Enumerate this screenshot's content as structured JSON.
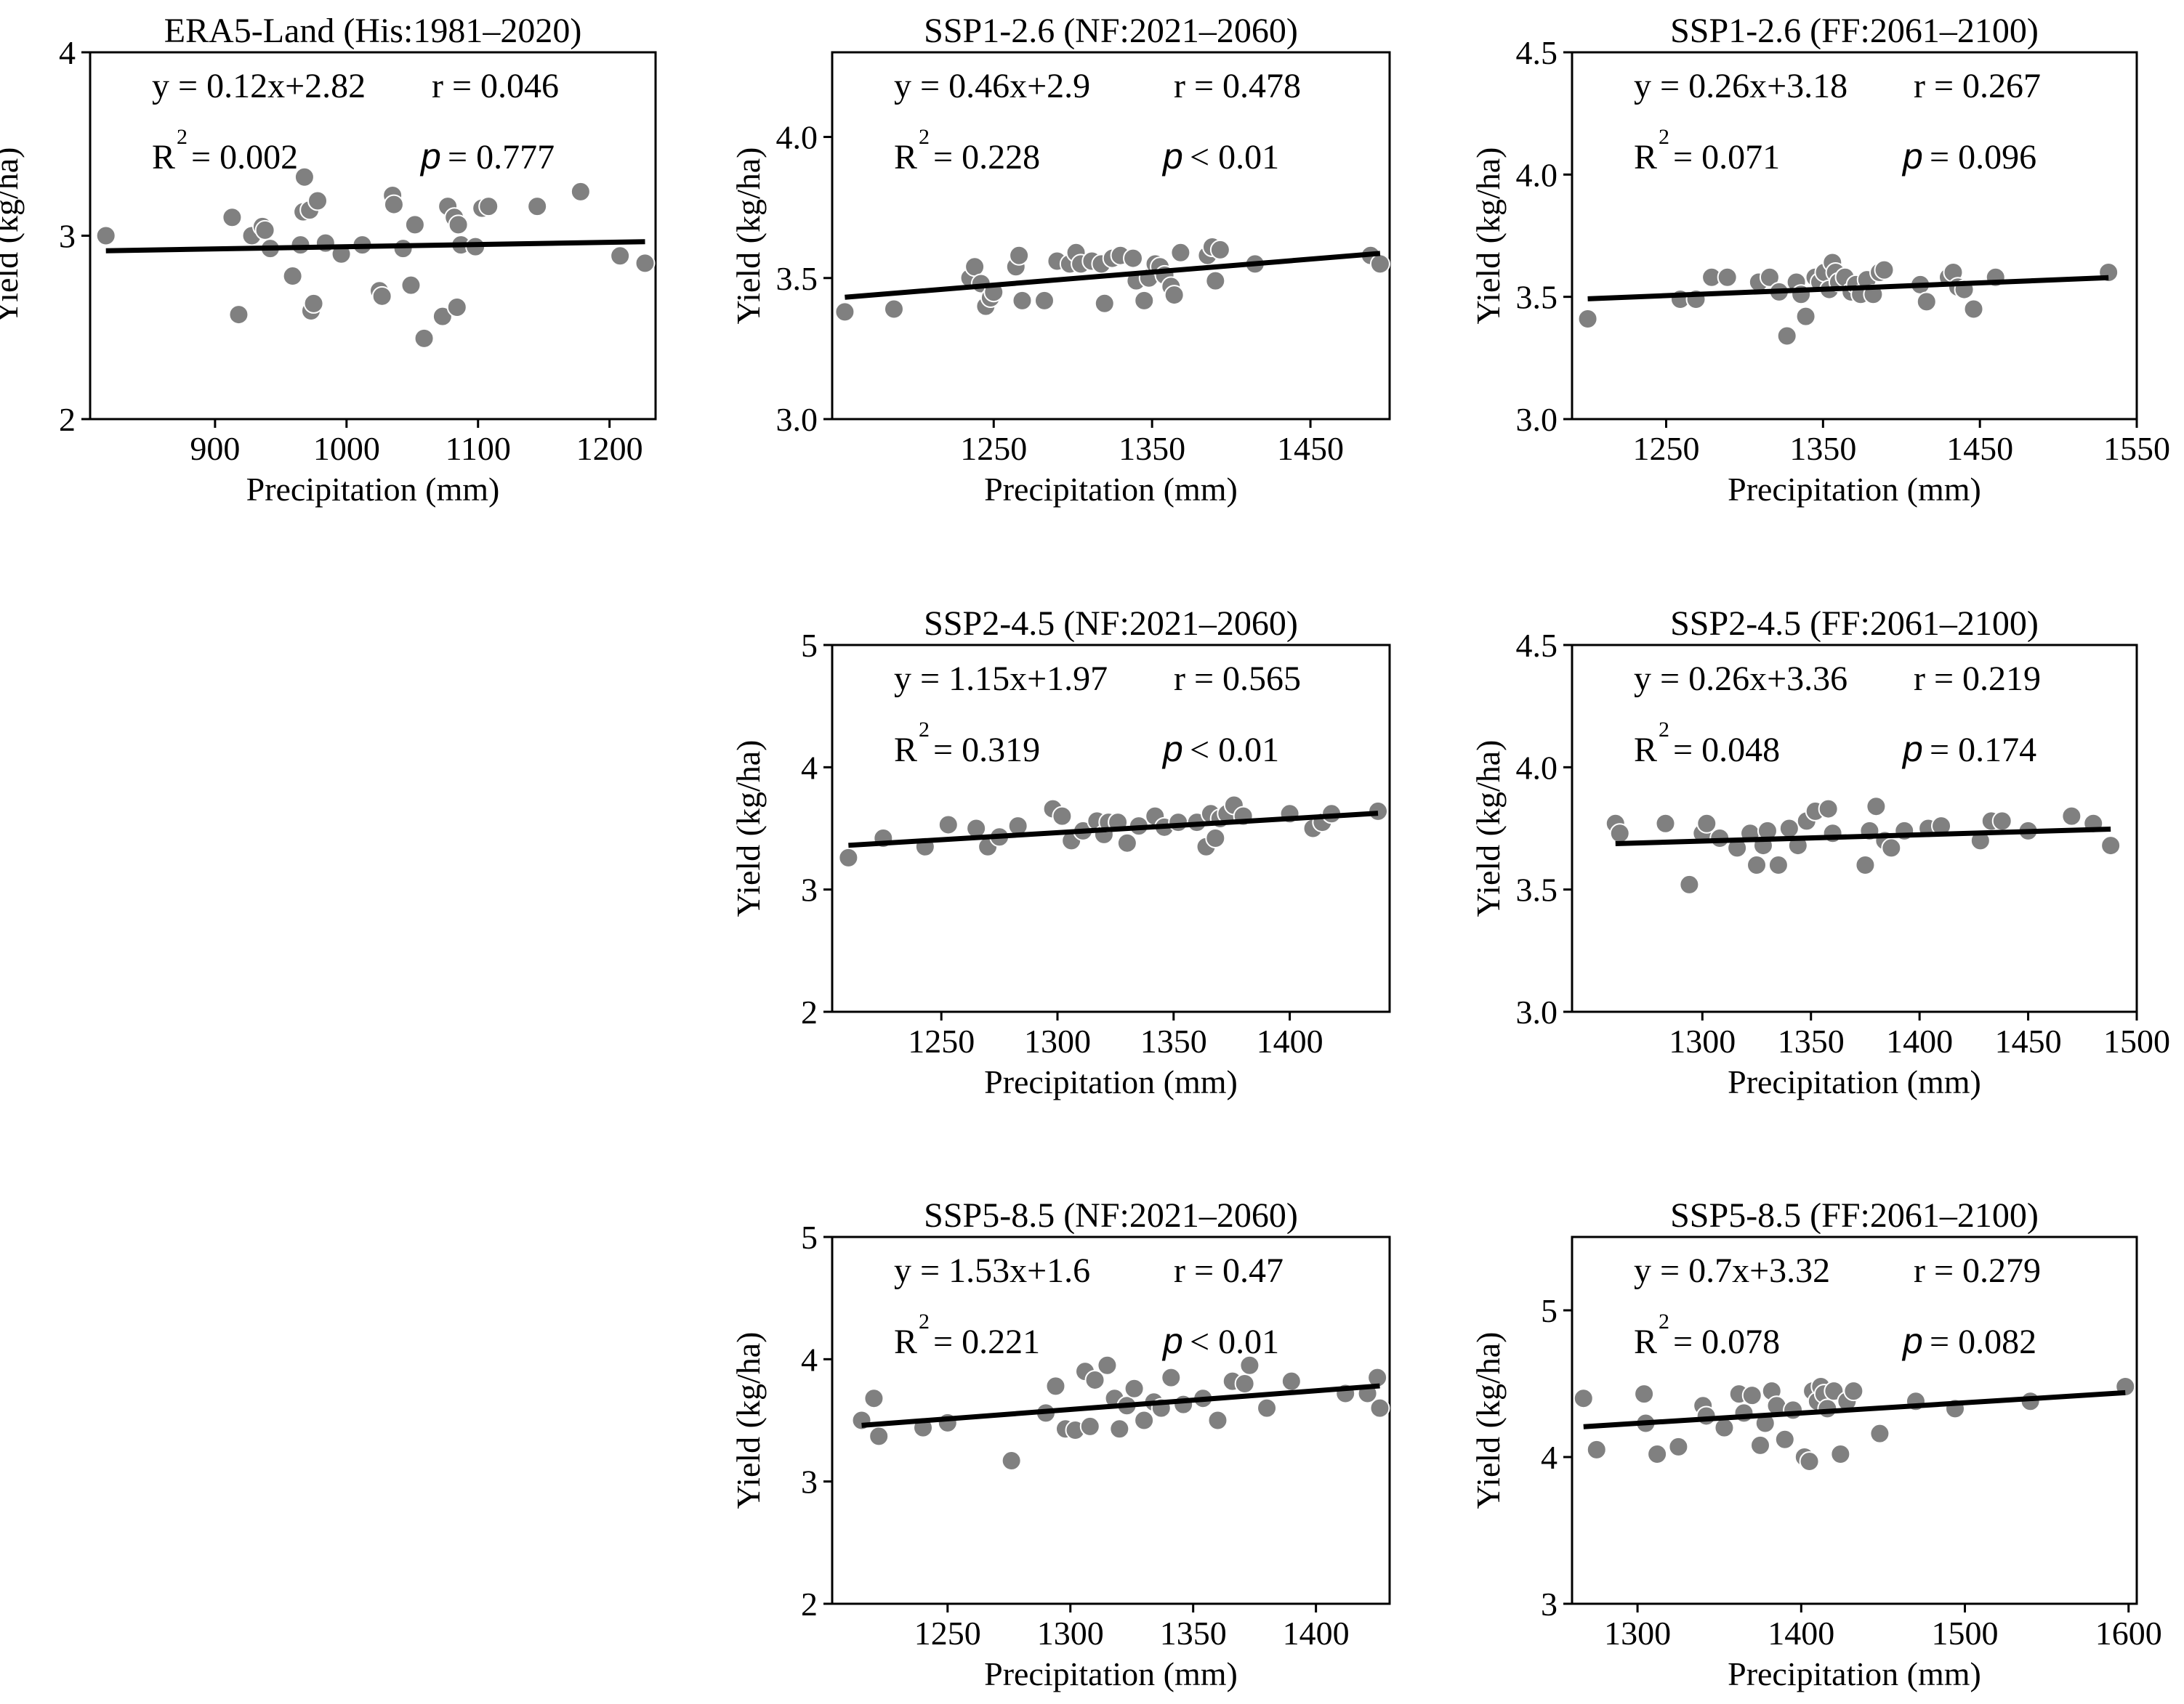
{
  "figure": {
    "colors": {
      "point": "#808080",
      "point_edge": "#ffffff",
      "line": "#000000",
      "axes": "#000000"
    }
  },
  "chart_data": [
    {
      "id": "era5",
      "type": "scatter",
      "title": "ERA5-Land (His:1981–2020)",
      "xlabel": "Precipitation (mm)",
      "ylabel": "Yield (kg/ha)",
      "xlim": [
        805,
        1235
      ],
      "ylim": [
        2,
        4
      ],
      "xticks": [
        900,
        1000,
        1100,
        1200
      ],
      "yticks": [
        2,
        3,
        4
      ],
      "equation": "y = 0.12x+2.82",
      "r_text": "r = 0.046",
      "r2_label": "R",
      "r2_sup": "2",
      "r2_value": "= 0.002",
      "p_label": "p",
      "p_value": "= 0.777",
      "fit": {
        "slope_per_1000mm": 0.12,
        "intercept": 2.82
      },
      "points": [
        [
          817,
          3.0
        ],
        [
          913,
          3.1
        ],
        [
          918,
          2.57
        ],
        [
          928,
          3.0
        ],
        [
          936,
          3.05
        ],
        [
          938,
          3.03
        ],
        [
          942,
          2.93
        ],
        [
          959,
          2.78
        ],
        [
          965,
          2.95
        ],
        [
          967,
          3.13
        ],
        [
          968,
          3.32
        ],
        [
          972,
          3.14
        ],
        [
          973,
          2.59
        ],
        [
          975,
          2.63
        ],
        [
          978,
          3.19
        ],
        [
          984,
          2.96
        ],
        [
          996,
          2.9
        ],
        [
          1012,
          2.95
        ],
        [
          1025,
          2.7
        ],
        [
          1027,
          2.67
        ],
        [
          1035,
          3.22
        ],
        [
          1036,
          3.17
        ],
        [
          1043,
          2.93
        ],
        [
          1049,
          2.73
        ],
        [
          1052,
          3.06
        ],
        [
          1059,
          2.44
        ],
        [
          1073,
          2.56
        ],
        [
          1077,
          3.16
        ],
        [
          1082,
          3.1
        ],
        [
          1084,
          2.61
        ],
        [
          1085,
          3.06
        ],
        [
          1087,
          2.95
        ],
        [
          1098,
          2.94
        ],
        [
          1103,
          3.15
        ],
        [
          1108,
          3.16
        ],
        [
          1145,
          3.16
        ],
        [
          1178,
          3.24
        ],
        [
          1208,
          2.89
        ],
        [
          1227,
          2.85
        ]
      ]
    },
    {
      "id": "ssp126_nf",
      "type": "scatter",
      "title": "SSP1-2.6 (NF:2021–2060)",
      "xlabel": "Precipitation (mm)",
      "ylabel": "Yield (kg/ha)",
      "xlim": [
        1148,
        1500
      ],
      "ylim": [
        3.0,
        4.3
      ],
      "xticks": [
        1250,
        1350,
        1450
      ],
      "yticks": [
        3.0,
        3.5,
        4.0
      ],
      "tick_decimals": 1,
      "equation": "y = 0.46x+2.9",
      "r_text": "r = 0.478",
      "r2_label": "R",
      "r2_sup": "2",
      "r2_value": "= 0.228",
      "p_label": "p",
      "p_value": "< 0.01",
      "fit": {
        "slope_per_1000mm": 0.46,
        "intercept": 2.9
      },
      "points": [
        [
          1156,
          3.38
        ],
        [
          1187,
          3.39
        ],
        [
          1235,
          3.5
        ],
        [
          1238,
          3.54
        ],
        [
          1242,
          3.48
        ],
        [
          1245,
          3.4
        ],
        [
          1248,
          3.43
        ],
        [
          1250,
          3.45
        ],
        [
          1264,
          3.54
        ],
        [
          1266,
          3.58
        ],
        [
          1268,
          3.42
        ],
        [
          1282,
          3.42
        ],
        [
          1290,
          3.56
        ],
        [
          1298,
          3.55
        ],
        [
          1302,
          3.59
        ],
        [
          1305,
          3.55
        ],
        [
          1312,
          3.56
        ],
        [
          1318,
          3.55
        ],
        [
          1320,
          3.41
        ],
        [
          1325,
          3.57
        ],
        [
          1330,
          3.58
        ],
        [
          1338,
          3.57
        ],
        [
          1340,
          3.49
        ],
        [
          1345,
          3.42
        ],
        [
          1348,
          3.5
        ],
        [
          1352,
          3.55
        ],
        [
          1355,
          3.54
        ],
        [
          1358,
          3.51
        ],
        [
          1362,
          3.47
        ],
        [
          1364,
          3.44
        ],
        [
          1368,
          3.59
        ],
        [
          1385,
          3.58
        ],
        [
          1388,
          3.61
        ],
        [
          1390,
          3.49
        ],
        [
          1393,
          3.6
        ],
        [
          1415,
          3.55
        ],
        [
          1488,
          3.58
        ],
        [
          1494,
          3.55
        ]
      ]
    },
    {
      "id": "ssp126_ff",
      "type": "scatter",
      "title": "SSP1-2.6 (FF:2061–2100)",
      "xlabel": "Precipitation (mm)",
      "ylabel": "Yield (kg/ha)",
      "xlim": [
        1190,
        1550
      ],
      "ylim": [
        3.0,
        4.5
      ],
      "xticks": [
        1250,
        1350,
        1450,
        1550
      ],
      "yticks": [
        3.0,
        3.5,
        4.0,
        4.5
      ],
      "tick_decimals": 1,
      "equation": "y = 0.26x+3.18",
      "r_text": "r = 0.267",
      "r2_label": "R",
      "r2_sup": "2",
      "r2_value": "= 0.071",
      "p_label": "p",
      "p_value": "= 0.096",
      "fit": {
        "slope_per_1000mm": 0.26,
        "intercept": 3.18
      },
      "points": [
        [
          1200,
          3.41
        ],
        [
          1259,
          3.49
        ],
        [
          1269,
          3.49
        ],
        [
          1279,
          3.58
        ],
        [
          1289,
          3.58
        ],
        [
          1309,
          3.56
        ],
        [
          1316,
          3.58
        ],
        [
          1322,
          3.52
        ],
        [
          1327,
          3.34
        ],
        [
          1333,
          3.56
        ],
        [
          1336,
          3.51
        ],
        [
          1339,
          3.42
        ],
        [
          1345,
          3.58
        ],
        [
          1348,
          3.56
        ],
        [
          1351,
          3.6
        ],
        [
          1354,
          3.53
        ],
        [
          1356,
          3.64
        ],
        [
          1358,
          3.6
        ],
        [
          1360,
          3.56
        ],
        [
          1364,
          3.58
        ],
        [
          1368,
          3.52
        ],
        [
          1371,
          3.55
        ],
        [
          1374,
          3.51
        ],
        [
          1378,
          3.57
        ],
        [
          1382,
          3.51
        ],
        [
          1386,
          3.6
        ],
        [
          1389,
          3.61
        ],
        [
          1412,
          3.55
        ],
        [
          1416,
          3.48
        ],
        [
          1430,
          3.58
        ],
        [
          1433,
          3.6
        ],
        [
          1436,
          3.54
        ],
        [
          1440,
          3.53
        ],
        [
          1446,
          3.45
        ],
        [
          1460,
          3.58
        ],
        [
          1532,
          3.6
        ]
      ]
    },
    {
      "id": "ssp245_nf",
      "type": "scatter",
      "title": "SSP2-4.5 (NF:2021–2060)",
      "xlabel": "Precipitation (mm)",
      "ylabel": "Yield (kg/ha)",
      "xlim": [
        1203,
        1443
      ],
      "ylim": [
        2,
        5
      ],
      "xticks": [
        1250,
        1300,
        1350,
        1400
      ],
      "yticks": [
        2,
        3,
        4,
        5
      ],
      "equation": "y = 1.15x+1.97",
      "r_text": "r = 0.565",
      "r2_label": "R",
      "r2_sup": "2",
      "r2_value": "= 0.319",
      "p_label": "p",
      "p_value": "< 0.01",
      "fit": {
        "slope_per_1000mm": 1.15,
        "intercept": 1.97
      },
      "points": [
        [
          1210,
          3.26
        ],
        [
          1225,
          3.42
        ],
        [
          1243,
          3.35
        ],
        [
          1253,
          3.53
        ],
        [
          1265,
          3.5
        ],
        [
          1270,
          3.35
        ],
        [
          1275,
          3.43
        ],
        [
          1283,
          3.52
        ],
        [
          1298,
          3.66
        ],
        [
          1302,
          3.6
        ],
        [
          1306,
          3.4
        ],
        [
          1311,
          3.48
        ],
        [
          1317,
          3.56
        ],
        [
          1320,
          3.45
        ],
        [
          1322,
          3.55
        ],
        [
          1326,
          3.55
        ],
        [
          1330,
          3.38
        ],
        [
          1335,
          3.52
        ],
        [
          1342,
          3.6
        ],
        [
          1346,
          3.51
        ],
        [
          1352,
          3.55
        ],
        [
          1360,
          3.55
        ],
        [
          1364,
          3.35
        ],
        [
          1366,
          3.62
        ],
        [
          1368,
          3.42
        ],
        [
          1370,
          3.58
        ],
        [
          1373,
          3.62
        ],
        [
          1376,
          3.69
        ],
        [
          1380,
          3.6
        ],
        [
          1400,
          3.62
        ],
        [
          1410,
          3.5
        ],
        [
          1414,
          3.55
        ],
        [
          1418,
          3.62
        ],
        [
          1438,
          3.64
        ]
      ]
    },
    {
      "id": "ssp245_ff",
      "type": "scatter",
      "title": "SSP2-4.5 (FF:2061–2100)",
      "xlabel": "Precipitation (mm)",
      "ylabel": "Yield (kg/ha)",
      "xlim": [
        1240,
        1500
      ],
      "ylim": [
        3.0,
        4.5
      ],
      "xticks": [
        1300,
        1350,
        1400,
        1450,
        1500
      ],
      "yticks": [
        3.0,
        3.5,
        4.0,
        4.5
      ],
      "tick_decimals": 1,
      "equation": "y = 0.26x+3.36",
      "r_text": "r = 0.219",
      "r2_label": "R",
      "r2_sup": "2",
      "r2_value": "= 0.048",
      "p_label": "p",
      "p_value": "= 0.174",
      "fit": {
        "slope_per_1000mm": 0.26,
        "intercept": 3.36
      },
      "points": [
        [
          1260,
          3.77
        ],
        [
          1262,
          3.73
        ],
        [
          1283,
          3.77
        ],
        [
          1294,
          3.52
        ],
        [
          1300,
          3.73
        ],
        [
          1302,
          3.77
        ],
        [
          1308,
          3.71
        ],
        [
          1316,
          3.67
        ],
        [
          1322,
          3.73
        ],
        [
          1325,
          3.6
        ],
        [
          1328,
          3.68
        ],
        [
          1330,
          3.74
        ],
        [
          1335,
          3.6
        ],
        [
          1340,
          3.75
        ],
        [
          1344,
          3.68
        ],
        [
          1348,
          3.78
        ],
        [
          1352,
          3.82
        ],
        [
          1358,
          3.83
        ],
        [
          1360,
          3.73
        ],
        [
          1375,
          3.6
        ],
        [
          1377,
          3.74
        ],
        [
          1380,
          3.84
        ],
        [
          1384,
          3.7
        ],
        [
          1387,
          3.67
        ],
        [
          1393,
          3.74
        ],
        [
          1404,
          3.75
        ],
        [
          1410,
          3.76
        ],
        [
          1428,
          3.7
        ],
        [
          1433,
          3.78
        ],
        [
          1438,
          3.78
        ],
        [
          1450,
          3.74
        ],
        [
          1470,
          3.8
        ],
        [
          1480,
          3.77
        ],
        [
          1488,
          3.68
        ]
      ]
    },
    {
      "id": "ssp585_nf",
      "type": "scatter",
      "title": "SSP5-8.5 (NF:2021–2060)",
      "xlabel": "Precipitation (mm)",
      "ylabel": "Yield (kg/ha)",
      "xlim": [
        1203,
        1430
      ],
      "ylim": [
        2,
        5
      ],
      "xticks": [
        1250,
        1300,
        1350,
        1400
      ],
      "yticks": [
        2,
        3,
        4,
        5
      ],
      "equation": "y = 1.53x+1.6",
      "r_text": "r = 0.47",
      "r2_label": "R",
      "r2_sup": "2",
      "r2_value": "= 0.221",
      "p_label": "p",
      "p_value": "< 0.01",
      "fit": {
        "slope_per_1000mm": 1.53,
        "intercept": 1.6
      },
      "points": [
        [
          1215,
          3.5
        ],
        [
          1220,
          3.68
        ],
        [
          1222,
          3.37
        ],
        [
          1240,
          3.44
        ],
        [
          1250,
          3.48
        ],
        [
          1276,
          3.17
        ],
        [
          1290,
          3.56
        ],
        [
          1294,
          3.78
        ],
        [
          1298,
          3.43
        ],
        [
          1302,
          3.42
        ],
        [
          1306,
          3.9
        ],
        [
          1308,
          3.45
        ],
        [
          1310,
          3.83
        ],
        [
          1315,
          3.95
        ],
        [
          1318,
          3.68
        ],
        [
          1320,
          3.43
        ],
        [
          1323,
          3.62
        ],
        [
          1326,
          3.76
        ],
        [
          1330,
          3.5
        ],
        [
          1334,
          3.65
        ],
        [
          1337,
          3.6
        ],
        [
          1341,
          3.85
        ],
        [
          1346,
          3.63
        ],
        [
          1354,
          3.68
        ],
        [
          1360,
          3.5
        ],
        [
          1366,
          3.82
        ],
        [
          1371,
          3.8
        ],
        [
          1373,
          3.95
        ],
        [
          1380,
          3.6
        ],
        [
          1390,
          3.82
        ],
        [
          1412,
          3.72
        ],
        [
          1421,
          3.72
        ],
        [
          1425,
          3.85
        ],
        [
          1426,
          3.6
        ]
      ]
    },
    {
      "id": "ssp585_ff",
      "type": "scatter",
      "title": "SSP5-8.5 (FF:2061–2100)",
      "xlabel": "Precipitation (mm)",
      "ylabel": "Yield (kg/ha)",
      "xlim": [
        1260,
        1605
      ],
      "ylim": [
        3,
        5.5
      ],
      "xticks": [
        1300,
        1400,
        1500,
        1600
      ],
      "yticks": [
        3,
        4,
        5
      ],
      "equation": "y = 0.7x+3.32",
      "r_text": "r = 0.279",
      "r2_label": "R",
      "r2_sup": "2",
      "r2_value": "= 0.078",
      "p_label": "p",
      "p_value": "= 0.082",
      "fit": {
        "slope_per_1000mm": 0.7,
        "intercept": 3.32
      },
      "points": [
        [
          1267,
          4.4
        ],
        [
          1275,
          4.05
        ],
        [
          1304,
          4.43
        ],
        [
          1305,
          4.23
        ],
        [
          1312,
          4.02
        ],
        [
          1325,
          4.07
        ],
        [
          1340,
          4.35
        ],
        [
          1342,
          4.28
        ],
        [
          1353,
          4.2
        ],
        [
          1362,
          4.43
        ],
        [
          1365,
          4.3
        ],
        [
          1370,
          4.42
        ],
        [
          1375,
          4.08
        ],
        [
          1378,
          4.23
        ],
        [
          1382,
          4.45
        ],
        [
          1385,
          4.35
        ],
        [
          1390,
          4.12
        ],
        [
          1395,
          4.32
        ],
        [
          1402,
          4.0
        ],
        [
          1405,
          3.97
        ],
        [
          1407,
          4.45
        ],
        [
          1410,
          4.38
        ],
        [
          1412,
          4.48
        ],
        [
          1414,
          4.43
        ],
        [
          1416,
          4.33
        ],
        [
          1420,
          4.45
        ],
        [
          1424,
          4.02
        ],
        [
          1428,
          4.38
        ],
        [
          1432,
          4.45
        ],
        [
          1448,
          4.16
        ],
        [
          1470,
          4.38
        ],
        [
          1494,
          4.33
        ],
        [
          1540,
          4.38
        ],
        [
          1598,
          4.48
        ]
      ]
    }
  ]
}
